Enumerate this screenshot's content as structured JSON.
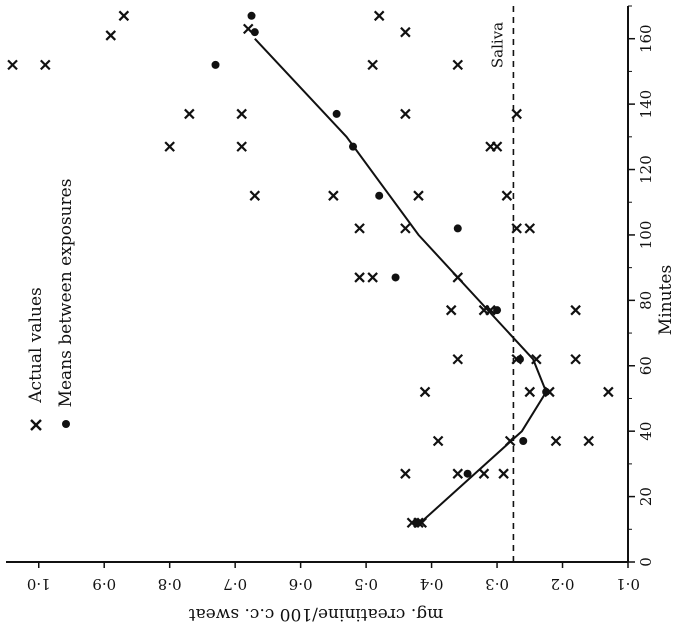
{
  "chart_data": {
    "type": "scatter",
    "orientation": "rotated-90",
    "x_axis": {
      "label": "Minutes",
      "range": [
        0,
        170
      ],
      "ticks": [
        0,
        20,
        40,
        60,
        80,
        100,
        120,
        140,
        160
      ],
      "tick_labels": [
        "0",
        "20",
        "40",
        "60",
        "80",
        "100",
        "120",
        "140",
        "160"
      ]
    },
    "y_axis": {
      "label": "mg. creatinine/100 c.c. sweat",
      "range": [
        0.1,
        1.05
      ],
      "ticks": [
        0.1,
        0.2,
        0.3,
        0.4,
        0.5,
        0.6,
        0.7,
        0.8,
        0.9,
        1.0
      ],
      "tick_labels": [
        "0·1",
        "0·2",
        "0·3",
        "0·4",
        "0·5",
        "0·6",
        "0·7",
        "0·8",
        "0·9",
        "1·0"
      ]
    },
    "legend": {
      "placement": "upper-left",
      "entries": [
        {
          "symbol": "×",
          "label": "Actual values"
        },
        {
          "symbol": "•",
          "label": "Means between exposures"
        }
      ]
    },
    "reference_line": {
      "label": "Saliva",
      "y": 0.275,
      "style": "dashed"
    },
    "series": [
      {
        "name": "Actual values",
        "marker": "x",
        "points": [
          [
            12,
            0.42
          ],
          [
            12,
            0.43
          ],
          [
            12,
            0.415
          ],
          [
            27,
            0.44
          ],
          [
            27,
            0.36
          ],
          [
            27,
            0.32
          ],
          [
            27,
            0.29
          ],
          [
            37,
            0.39
          ],
          [
            37,
            0.28
          ],
          [
            37,
            0.21
          ],
          [
            37,
            0.16
          ],
          [
            52,
            0.41
          ],
          [
            52,
            0.25
          ],
          [
            52,
            0.22
          ],
          [
            52,
            0.13
          ],
          [
            62,
            0.36
          ],
          [
            62,
            0.27
          ],
          [
            62,
            0.24
          ],
          [
            62,
            0.18
          ],
          [
            77,
            0.37
          ],
          [
            77,
            0.32
          ],
          [
            77,
            0.31
          ],
          [
            77,
            0.18
          ],
          [
            87,
            0.51
          ],
          [
            87,
            0.49
          ],
          [
            87,
            0.36
          ],
          [
            102,
            0.51
          ],
          [
            102,
            0.44
          ],
          [
            102,
            0.27
          ],
          [
            102,
            0.25
          ],
          [
            112,
            0.67
          ],
          [
            112,
            0.55
          ],
          [
            112,
            0.42
          ],
          [
            112,
            0.285
          ],
          [
            127,
            0.8
          ],
          [
            127,
            0.69
          ],
          [
            127,
            0.31
          ],
          [
            127,
            0.3
          ],
          [
            137,
            0.77
          ],
          [
            137,
            0.69
          ],
          [
            137,
            0.44
          ],
          [
            137,
            0.27
          ],
          [
            152,
            1.04
          ],
          [
            152,
            0.99
          ],
          [
            152,
            0.49
          ],
          [
            152,
            0.36
          ],
          [
            161,
            0.89
          ],
          [
            162,
            0.44
          ],
          [
            163,
            0.68
          ],
          [
            167,
            0.87
          ],
          [
            167,
            0.48
          ]
        ]
      },
      {
        "name": "Means between exposures",
        "marker": "dot",
        "points": [
          [
            12,
            0.422
          ],
          [
            27,
            0.345
          ],
          [
            37,
            0.26
          ],
          [
            52,
            0.225
          ],
          [
            62,
            0.265
          ],
          [
            77,
            0.3
          ],
          [
            87,
            0.455
          ],
          [
            102,
            0.36
          ],
          [
            112,
            0.48
          ],
          [
            127,
            0.52
          ],
          [
            137,
            0.545
          ],
          [
            152,
            0.73
          ],
          [
            162,
            0.67
          ],
          [
            167,
            0.675
          ]
        ]
      },
      {
        "name": "Trend",
        "marker": "line",
        "points": [
          [
            12,
            0.417
          ],
          [
            40,
            0.262
          ],
          [
            52,
            0.225
          ],
          [
            62,
            0.245
          ],
          [
            100,
            0.42
          ],
          [
            130,
            0.53
          ],
          [
            160,
            0.67
          ]
        ]
      }
    ]
  }
}
